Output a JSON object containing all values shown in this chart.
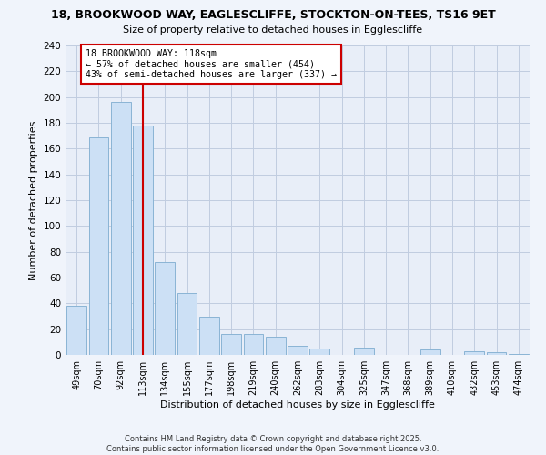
{
  "title_line1": "18, BROOKWOOD WAY, EAGLESCLIFFE, STOCKTON-ON-TEES, TS16 9ET",
  "title_line2": "Size of property relative to detached houses in Egglescliffe",
  "xlabel": "Distribution of detached houses by size in Egglescliffe",
  "ylabel": "Number of detached properties",
  "categories": [
    "49sqm",
    "70sqm",
    "92sqm",
    "113sqm",
    "134sqm",
    "155sqm",
    "177sqm",
    "198sqm",
    "219sqm",
    "240sqm",
    "262sqm",
    "283sqm",
    "304sqm",
    "325sqm",
    "347sqm",
    "368sqm",
    "389sqm",
    "410sqm",
    "432sqm",
    "453sqm",
    "474sqm"
  ],
  "values": [
    38,
    169,
    196,
    178,
    72,
    48,
    30,
    16,
    16,
    14,
    7,
    5,
    0,
    6,
    0,
    0,
    4,
    0,
    3,
    2,
    1
  ],
  "bar_color": "#cce0f5",
  "bar_edge_color": "#8ab4d4",
  "vline_x_index": 3,
  "vline_color": "#cc0000",
  "annotation_title": "18 BROOKWOOD WAY: 118sqm",
  "annotation_line2": "← 57% of detached houses are smaller (454)",
  "annotation_line3": "43% of semi-detached houses are larger (337) →",
  "annotation_box_color": "#ffffff",
  "annotation_box_edgecolor": "#cc0000",
  "ylim": [
    0,
    240
  ],
  "yticks": [
    0,
    20,
    40,
    60,
    80,
    100,
    120,
    140,
    160,
    180,
    200,
    220,
    240
  ],
  "footer_line1": "Contains HM Land Registry data © Crown copyright and database right 2025.",
  "footer_line2": "Contains public sector information licensed under the Open Government Licence v3.0.",
  "background_color": "#f0f4fb",
  "plot_bg_color": "#e8eef8",
  "grid_color": "#c0cce0"
}
